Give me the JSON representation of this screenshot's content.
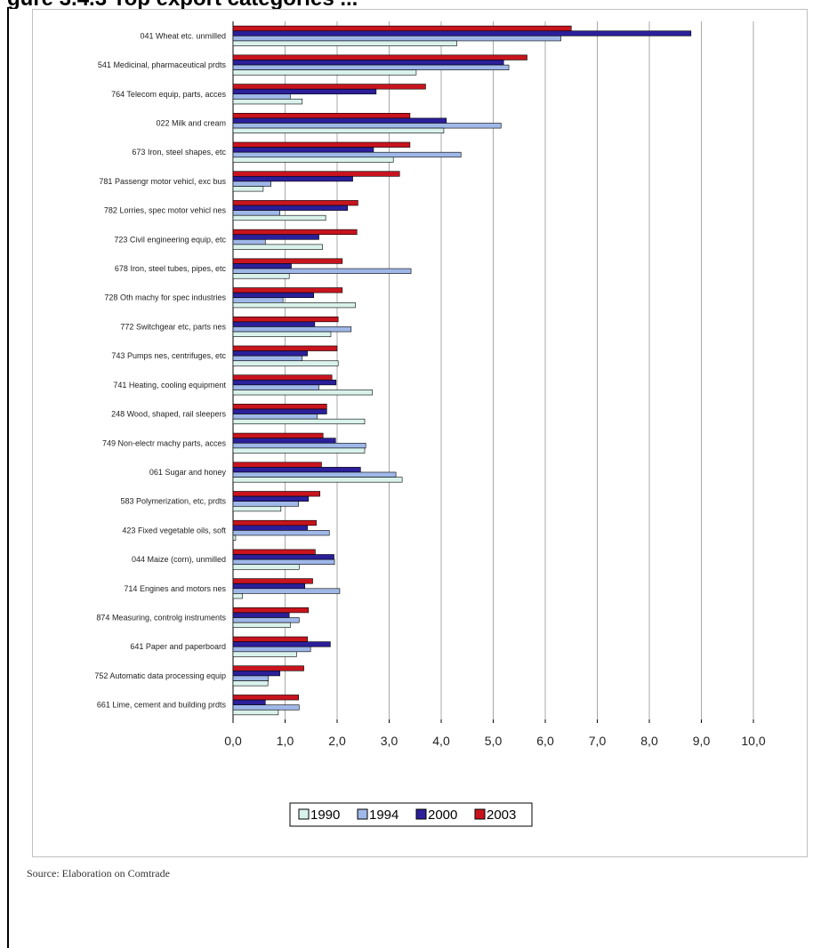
{
  "title": "gure 3.4.3 Top export categories ...",
  "source": "Source: Elaboration on Comtrade",
  "colors": {
    "1990": "#d9f2ec",
    "1994": "#9fb8e8",
    "2000": "#2b1f9a",
    "2003": "#c8141e",
    "grid": "#a8a8a8",
    "border": "#c0c0c0"
  },
  "chart_data": {
    "type": "bar",
    "orientation": "horizontal",
    "title": "",
    "xlabel": "",
    "ylabel": "",
    "xlim": [
      0,
      10
    ],
    "x_ticks": [
      "0,0",
      "1,0",
      "2,0",
      "3,0",
      "4,0",
      "5,0",
      "6,0",
      "7,0",
      "8,0",
      "9,0",
      "10,0"
    ],
    "grid": "vertical",
    "legend_position": "bottom",
    "categories": [
      "041  Wheat etc. unmilled",
      "541  Medicinal, pharmaceutical prdts",
      "764  Telecom equip, parts, acces",
      "022  Milk and cream",
      "673  Iron, steel shapes, etc",
      "781  Passengr motor vehicl, exc bus",
      "782  Lorries, spec motor vehicl nes",
      "723  Civil engineering equip, etc",
      "678  Iron, steel tubes, pipes, etc",
      "728  Oth machy for spec industries",
      "772  Switchgear etc, parts nes",
      "743  Pumps nes, centrifuges, etc",
      "741  Heating, cooling equipment",
      "248  Wood, shaped, rail sleepers",
      "749  Non-electr machy parts, acces",
      "061  Sugar and honey",
      "583  Polymerization, etc, prdts",
      "423  Fixed vegetable oils, soft",
      "044  Maize (corn), unmilled",
      "714  Engines and motors nes",
      "874  Measuring, controlg instruments",
      "641  Paper and paperboard",
      "752  Automatic data processing equip",
      "661  Lime, cement and building prdts"
    ],
    "series": [
      {
        "name": "2003",
        "values": [
          6.5,
          5.65,
          3.7,
          3.4,
          3.4,
          3.2,
          2.4,
          2.38,
          2.1,
          2.1,
          2.02,
          2.0,
          1.9,
          1.8,
          1.73,
          1.7,
          1.67,
          1.6,
          1.58,
          1.53,
          1.45,
          1.43,
          1.36,
          1.26
        ]
      },
      {
        "name": "2000",
        "values": [
          8.8,
          5.2,
          2.75,
          4.1,
          2.7,
          2.3,
          2.2,
          1.65,
          1.12,
          1.55,
          1.57,
          1.43,
          1.98,
          1.8,
          1.97,
          2.45,
          1.45,
          1.43,
          1.94,
          1.38,
          1.08,
          1.87,
          0.9,
          0.62
        ]
      },
      {
        "name": "1994",
        "values": [
          6.3,
          5.3,
          1.1,
          5.15,
          4.38,
          0.73,
          0.9,
          0.62,
          3.42,
          0.96,
          2.27,
          1.33,
          1.65,
          1.62,
          2.55,
          3.13,
          1.26,
          1.85,
          1.95,
          2.05,
          1.27,
          1.49,
          0.68,
          1.27
        ]
      },
      {
        "name": "1990",
        "values": [
          4.3,
          3.52,
          1.33,
          4.05,
          3.08,
          0.58,
          1.78,
          1.72,
          1.08,
          2.35,
          1.88,
          2.02,
          2.68,
          2.53,
          2.53,
          3.25,
          0.92,
          0.05,
          1.27,
          0.18,
          1.1,
          1.22,
          0.67,
          0.87
        ]
      }
    ],
    "legend": [
      "1990",
      "1994",
      "2000",
      "2003"
    ]
  }
}
